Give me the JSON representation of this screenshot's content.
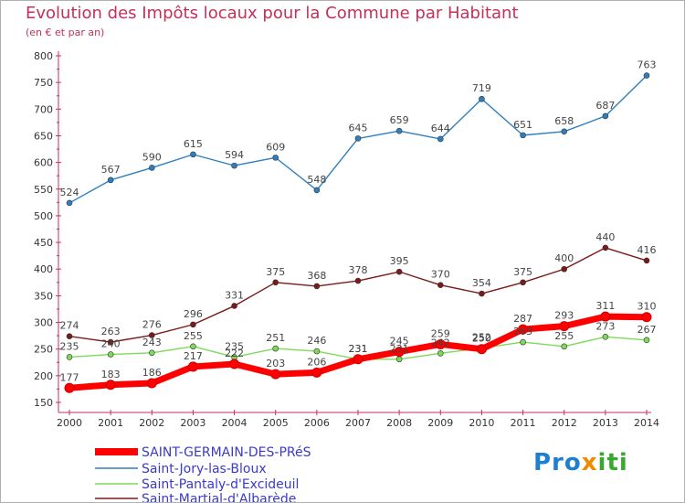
{
  "title": "Evolution des Impôts locaux pour la Commune par Habitant",
  "subtitle": "(en € et par an)",
  "logo": {
    "p1": "Pro",
    "p2": "x",
    "p3": "iti"
  },
  "chart_data": {
    "type": "line",
    "title": "Evolution des Impôts locaux pour la Commune par Habitant",
    "subtitle": "(en € et par an)",
    "x": [
      "2000",
      "2001",
      "2002",
      "2003",
      "2004",
      "2005",
      "2006",
      "2007",
      "2008",
      "2009",
      "2010",
      "2011",
      "2012",
      "2013",
      "2014"
    ],
    "ylim": [
      150,
      800
    ],
    "yticks": [
      150,
      200,
      250,
      300,
      350,
      400,
      450,
      500,
      550,
      600,
      650,
      700,
      750,
      800
    ],
    "grid": false,
    "legend_position": "bottom-left",
    "series": [
      {
        "name": "SAINT-GERMAIN-DES-PRéS",
        "color": "#ff0000",
        "values": [
          177,
          183,
          186,
          217,
          222,
          203,
          206,
          231,
          245,
          259,
          250,
          287,
          293,
          311,
          310
        ]
      },
      {
        "name": "Saint-Jory-las-Bloux",
        "color": "#2e7fc0",
        "values": [
          524,
          567,
          590,
          615,
          594,
          609,
          548,
          645,
          659,
          644,
          719,
          651,
          658,
          687,
          763
        ]
      },
      {
        "name": "Saint-Pantaly-d'Excideuil",
        "color": "#7fd95a",
        "values": [
          235,
          240,
          243,
          255,
          235,
          251,
          246,
          231,
          231,
          242,
          252,
          263,
          255,
          273,
          267
        ]
      },
      {
        "name": "Saint-Martial-d'Albarède",
        "color": "#7a1a1a",
        "values": [
          274,
          263,
          276,
          296,
          331,
          375,
          368,
          378,
          395,
          370,
          354,
          375,
          400,
          440,
          416
        ]
      }
    ]
  }
}
